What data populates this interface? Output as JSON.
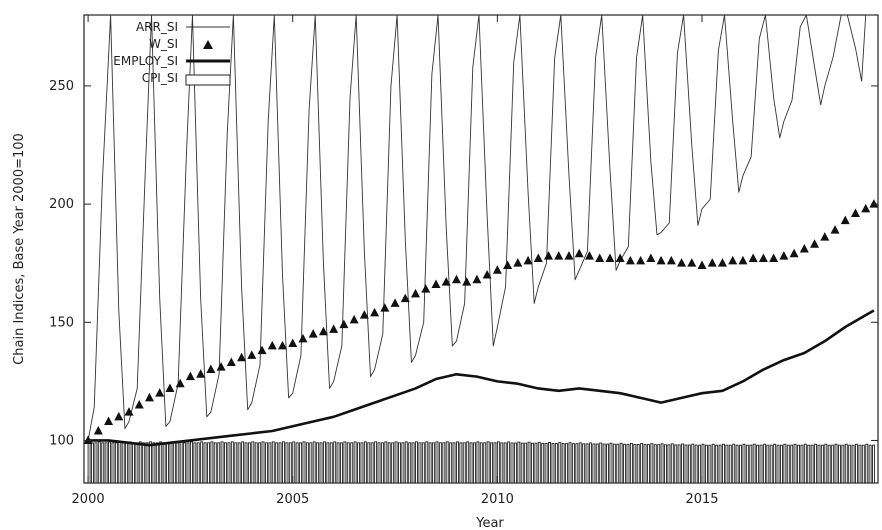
{
  "chart_data": {
    "type": "line",
    "xlabel": "Year",
    "ylabel": "Chain Indices, Base Year 2000=100",
    "xlim": [
      1999.9,
      2019.3
    ],
    "ylim": [
      82,
      280
    ],
    "x_ticks": [
      2000,
      2005,
      2010,
      2015
    ],
    "y_ticks": [
      100,
      150,
      200,
      250
    ],
    "grid": false,
    "legend_position": "top-left",
    "series": [
      {
        "name": "ARR_SI",
        "style": "thin-line",
        "color": "#333333",
        "description_points": [
          [
            2000.0,
            100
          ],
          [
            2000.15,
            114
          ],
          [
            2000.35,
            210
          ],
          [
            2000.55,
            280
          ],
          [
            2000.75,
            155
          ],
          [
            2000.9,
            105
          ],
          [
            2001.0,
            108
          ],
          [
            2001.2,
            122
          ],
          [
            2001.4,
            215
          ],
          [
            2001.55,
            280
          ],
          [
            2001.75,
            160
          ],
          [
            2001.9,
            106
          ],
          [
            2002.0,
            108
          ],
          [
            2002.2,
            124
          ],
          [
            2002.4,
            220
          ],
          [
            2002.55,
            280
          ],
          [
            2002.75,
            160
          ],
          [
            2002.9,
            110
          ],
          [
            2003.0,
            112
          ],
          [
            2003.2,
            128
          ],
          [
            2003.4,
            230
          ],
          [
            2003.55,
            280
          ],
          [
            2003.75,
            165
          ],
          [
            2003.9,
            113
          ],
          [
            2004.0,
            116
          ],
          [
            2004.2,
            132
          ],
          [
            2004.4,
            235
          ],
          [
            2004.55,
            280
          ],
          [
            2004.75,
            170
          ],
          [
            2004.9,
            118
          ],
          [
            2005.0,
            120
          ],
          [
            2005.2,
            136
          ],
          [
            2005.4,
            240
          ],
          [
            2005.55,
            280
          ],
          [
            2005.75,
            175
          ],
          [
            2005.9,
            122
          ],
          [
            2006.0,
            125
          ],
          [
            2006.2,
            140
          ],
          [
            2006.4,
            245
          ],
          [
            2006.55,
            280
          ],
          [
            2006.75,
            180
          ],
          [
            2006.9,
            127
          ],
          [
            2007.0,
            130
          ],
          [
            2007.2,
            145
          ],
          [
            2007.4,
            250
          ],
          [
            2007.55,
            280
          ],
          [
            2007.75,
            185
          ],
          [
            2007.9,
            133
          ],
          [
            2008.0,
            136
          ],
          [
            2008.2,
            150
          ],
          [
            2008.4,
            255
          ],
          [
            2008.55,
            280
          ],
          [
            2008.75,
            190
          ],
          [
            2008.9,
            140
          ],
          [
            2009.0,
            142
          ],
          [
            2009.2,
            158
          ],
          [
            2009.4,
            258
          ],
          [
            2009.55,
            280
          ],
          [
            2009.75,
            195
          ],
          [
            2009.9,
            140
          ],
          [
            2010.0,
            148
          ],
          [
            2010.2,
            165
          ],
          [
            2010.4,
            260
          ],
          [
            2010.55,
            280
          ],
          [
            2010.75,
            205
          ],
          [
            2010.9,
            158
          ],
          [
            2011.0,
            165
          ],
          [
            2011.2,
            175
          ],
          [
            2011.4,
            262
          ],
          [
            2011.55,
            280
          ],
          [
            2011.75,
            212
          ],
          [
            2011.9,
            168
          ],
          [
            2012.0,
            172
          ],
          [
            2012.2,
            180
          ],
          [
            2012.4,
            262
          ],
          [
            2012.55,
            280
          ],
          [
            2012.75,
            215
          ],
          [
            2012.9,
            172
          ],
          [
            2013.0,
            176
          ],
          [
            2013.2,
            182
          ],
          [
            2013.4,
            262
          ],
          [
            2013.55,
            280
          ],
          [
            2013.75,
            218
          ],
          [
            2013.9,
            187
          ],
          [
            2014.0,
            188
          ],
          [
            2014.2,
            192
          ],
          [
            2014.4,
            264
          ],
          [
            2014.55,
            280
          ],
          [
            2014.75,
            225
          ],
          [
            2014.9,
            191
          ],
          [
            2015.0,
            198
          ],
          [
            2015.2,
            202
          ],
          [
            2015.4,
            265
          ],
          [
            2015.55,
            280
          ],
          [
            2015.75,
            235
          ],
          [
            2015.9,
            205
          ],
          [
            2016.0,
            212
          ],
          [
            2016.2,
            220
          ],
          [
            2016.4,
            270
          ],
          [
            2016.55,
            280
          ],
          [
            2016.75,
            245
          ],
          [
            2016.9,
            228
          ],
          [
            2017.0,
            235
          ],
          [
            2017.2,
            244
          ],
          [
            2017.4,
            275
          ],
          [
            2017.55,
            280
          ],
          [
            2017.75,
            258
          ],
          [
            2017.9,
            242
          ],
          [
            2018.0,
            250
          ],
          [
            2018.2,
            262
          ],
          [
            2018.4,
            280
          ],
          [
            2018.55,
            280
          ],
          [
            2018.75,
            266
          ],
          [
            2018.9,
            252
          ],
          [
            2019.0,
            280
          ],
          [
            2019.2,
            280
          ]
        ]
      },
      {
        "name": "W_SI",
        "style": "triangles",
        "color": "#111111",
        "description_points": [
          [
            2000.0,
            100
          ],
          [
            2000.25,
            104
          ],
          [
            2000.5,
            108
          ],
          [
            2000.75,
            110
          ],
          [
            2001.0,
            112
          ],
          [
            2001.25,
            115
          ],
          [
            2001.5,
            118
          ],
          [
            2001.75,
            120
          ],
          [
            2002.0,
            122
          ],
          [
            2002.25,
            124
          ],
          [
            2002.5,
            127
          ],
          [
            2002.75,
            128
          ],
          [
            2003.0,
            130
          ],
          [
            2003.25,
            131
          ],
          [
            2003.5,
            133
          ],
          [
            2003.75,
            135
          ],
          [
            2004.0,
            136
          ],
          [
            2004.25,
            138
          ],
          [
            2004.5,
            140
          ],
          [
            2004.75,
            140
          ],
          [
            2005.0,
            141
          ],
          [
            2005.25,
            143
          ],
          [
            2005.5,
            145
          ],
          [
            2005.75,
            146
          ],
          [
            2006.0,
            147
          ],
          [
            2006.25,
            149
          ],
          [
            2006.5,
            151
          ],
          [
            2006.75,
            153
          ],
          [
            2007.0,
            154
          ],
          [
            2007.25,
            156
          ],
          [
            2007.5,
            158
          ],
          [
            2007.75,
            160
          ],
          [
            2008.0,
            162
          ],
          [
            2008.25,
            164
          ],
          [
            2008.5,
            166
          ],
          [
            2008.75,
            167
          ],
          [
            2009.0,
            168
          ],
          [
            2009.25,
            167
          ],
          [
            2009.5,
            168
          ],
          [
            2009.75,
            170
          ],
          [
            2010.0,
            172
          ],
          [
            2010.25,
            174
          ],
          [
            2010.5,
            175
          ],
          [
            2010.75,
            176
          ],
          [
            2011.0,
            177
          ],
          [
            2011.25,
            178
          ],
          [
            2011.5,
            178
          ],
          [
            2011.75,
            178
          ],
          [
            2012.0,
            179
          ],
          [
            2012.25,
            178
          ],
          [
            2012.5,
            177
          ],
          [
            2012.75,
            177
          ],
          [
            2013.0,
            177
          ],
          [
            2013.25,
            176
          ],
          [
            2013.5,
            176
          ],
          [
            2013.75,
            177
          ],
          [
            2014.0,
            176
          ],
          [
            2014.25,
            176
          ],
          [
            2014.5,
            175
          ],
          [
            2014.75,
            175
          ],
          [
            2015.0,
            174
          ],
          [
            2015.25,
            175
          ],
          [
            2015.5,
            175
          ],
          [
            2015.75,
            176
          ],
          [
            2016.0,
            176
          ],
          [
            2016.25,
            177
          ],
          [
            2016.5,
            177
          ],
          [
            2016.75,
            177
          ],
          [
            2017.0,
            178
          ],
          [
            2017.25,
            179
          ],
          [
            2017.5,
            181
          ],
          [
            2017.75,
            183
          ],
          [
            2018.0,
            186
          ],
          [
            2018.25,
            189
          ],
          [
            2018.5,
            193
          ],
          [
            2018.75,
            196
          ],
          [
            2019.0,
            198
          ],
          [
            2019.2,
            200
          ]
        ]
      },
      {
        "name": "EMPLOY_SI",
        "style": "thick-line",
        "color": "#111111",
        "description_points": [
          [
            2000.0,
            100
          ],
          [
            2000.5,
            100
          ],
          [
            2001.0,
            99
          ],
          [
            2001.5,
            98
          ],
          [
            2002.0,
            99
          ],
          [
            2002.5,
            100
          ],
          [
            2003.0,
            101
          ],
          [
            2003.5,
            102
          ],
          [
            2004.0,
            103
          ],
          [
            2004.5,
            104
          ],
          [
            2005.0,
            106
          ],
          [
            2005.5,
            108
          ],
          [
            2006.0,
            110
          ],
          [
            2006.5,
            113
          ],
          [
            2007.0,
            116
          ],
          [
            2007.5,
            119
          ],
          [
            2008.0,
            122
          ],
          [
            2008.5,
            126
          ],
          [
            2009.0,
            128
          ],
          [
            2009.5,
            127
          ],
          [
            2010.0,
            125
          ],
          [
            2010.5,
            124
          ],
          [
            2011.0,
            122
          ],
          [
            2011.5,
            121
          ],
          [
            2012.0,
            122
          ],
          [
            2012.5,
            121
          ],
          [
            2013.0,
            120
          ],
          [
            2013.5,
            118
          ],
          [
            2014.0,
            116
          ],
          [
            2014.5,
            118
          ],
          [
            2015.0,
            120
          ],
          [
            2015.5,
            121
          ],
          [
            2016.0,
            125
          ],
          [
            2016.5,
            130
          ],
          [
            2017.0,
            134
          ],
          [
            2017.5,
            137
          ],
          [
            2018.0,
            142
          ],
          [
            2018.5,
            148
          ],
          [
            2019.0,
            153
          ],
          [
            2019.2,
            155
          ]
        ]
      },
      {
        "name": "CPI_SI",
        "style": "bars",
        "color": "#222222",
        "description_points": [
          [
            2000.0,
            99
          ],
          [
            2005.0,
            99
          ],
          [
            2010.0,
            99
          ],
          [
            2015.0,
            98
          ],
          [
            2019.2,
            98
          ]
        ]
      }
    ]
  }
}
